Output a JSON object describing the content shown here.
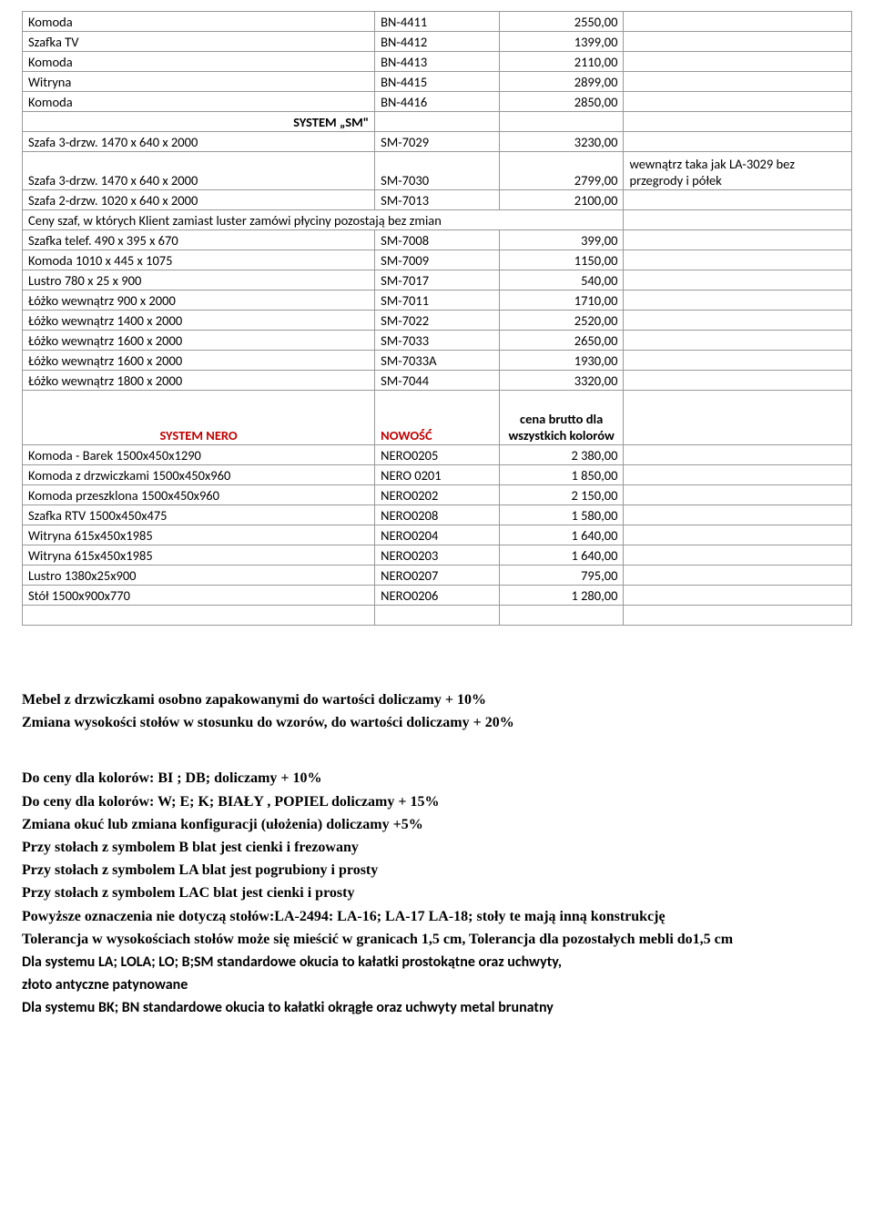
{
  "table": {
    "rows": [
      {
        "c1": "Komoda",
        "c2": "BN-4411",
        "c3": "2550,00",
        "c4": ""
      },
      {
        "c1": "Szafka TV",
        "c2": "BN-4412",
        "c3": "1399,00",
        "c4": ""
      },
      {
        "c1": "Komoda",
        "c2": "BN-4413",
        "c3": "2110,00",
        "c4": ""
      },
      {
        "c1": "Witryna",
        "c2": "BN-4415",
        "c3": "2899,00",
        "c4": ""
      },
      {
        "c1": "Komoda",
        "c2": "BN-4416",
        "c3": "2850,00",
        "c4": ""
      },
      {
        "c1": "SYSTEM „SM\"",
        "c2": "",
        "c3": "",
        "c4": "",
        "header": true,
        "rightAlign": true
      },
      {
        "c1": "Szafa 3-drzw. 1470 x 640 x 2000",
        "c2": "SM-7029",
        "c3": "3230,00",
        "c4": ""
      },
      {
        "c1": "Szafa 3-drzw. 1470 x 640 x 2000",
        "c2": "SM-7030",
        "c3": "2799,00",
        "c4": "wewnątrz taka jak LA-3029 bez przegrody i półek",
        "tallNote": true
      },
      {
        "c1": "Szafa 2-drzw. 1020 x 640 x 2000",
        "c2": "SM-7013",
        "c3": "2100,00",
        "c4": ""
      },
      {
        "c1": "Ceny szaf, w których Klient zamiast luster zamówi płyciny pozostają bez zmian",
        "span3": true
      },
      {
        "c1": "Szafka telef. 490 x 395 x 670",
        "c2": "SM-7008",
        "c3": "399,00",
        "c4": ""
      },
      {
        "c1": "Komoda 1010 x 445 x 1075",
        "c2": "SM-7009",
        "c3": "1150,00",
        "c4": ""
      },
      {
        "c1": "Lustro 780 x 25 x 900",
        "c2": "SM-7017",
        "c3": "540,00",
        "c4": ""
      },
      {
        "c1": "Łóżko wewnątrz  900 x 2000",
        "c2": "SM-7011",
        "c3": "1710,00",
        "c4": ""
      },
      {
        "c1": "Łóżko wewnątrz 1400 x 2000",
        "c2": "SM-7022",
        "c3": "2520,00",
        "c4": ""
      },
      {
        "c1": "Łóżko wewnątrz 1600 x 2000",
        "c2": "SM-7033",
        "c3": "2650,00",
        "c4": ""
      },
      {
        "c1": "Łóżko wewnątrz 1600 x 2000",
        "c2": "SM-7033A",
        "c3": "1930,00",
        "c4": ""
      },
      {
        "c1": "Łóżko wewnątrz 1800 x 2000",
        "c2": "SM-7044",
        "c3": "3320,00",
        "c4": ""
      },
      {
        "c1": "SYSTEM NERO",
        "c2": "NOWOŚĆ",
        "c3": "cena brutto dla wszystkich kolorów",
        "c4": "",
        "neroHeader": true
      },
      {
        "c1": "Komoda - Barek 1500x450x1290",
        "c2": "NERO0205",
        "c3": "2 380,00",
        "c4": ""
      },
      {
        "c1": "Komoda z drzwiczkami 1500x450x960",
        "c2": "NERO 0201",
        "c3": "1 850,00",
        "c4": ""
      },
      {
        "c1": "Komoda przeszklona 1500x450x960",
        "c2": "NERO0202",
        "c3": "2 150,00",
        "c4": ""
      },
      {
        "c1": "Szafka RTV 1500x450x475",
        "c2": "NERO0208",
        "c3": "1 580,00",
        "c4": ""
      },
      {
        "c1": "Witryna 615x450x1985",
        "c2": "NERO0204",
        "c3": "1 640,00",
        "c4": ""
      },
      {
        "c1": "Witryna 615x450x1985",
        "c2": "NERO0203",
        "c3": "1 640,00",
        "c4": ""
      },
      {
        "c1": "Lustro 1380x25x900",
        "c2": "NERO0207",
        "c3": "795,00",
        "c4": ""
      },
      {
        "c1": "Stół 1500x900x770",
        "c2": "NERO0206",
        "c3": "1 280,00",
        "c4": ""
      },
      {
        "c1": "",
        "c2": "",
        "c3": "",
        "c4": ""
      }
    ]
  },
  "notes": {
    "n1": "Mebel z drzwiczkami osobno zapakowanymi do wartości  doliczamy   + 10%",
    "n2": "Zmiana wysokości stołów w stosunku do wzorów, do wartości  doliczamy  + 20%",
    "n3_a": "Do ceny  dla kolorów:  BI ; DB;",
    "n3_b": "    doliczamy    + 10%",
    "n4_a": "Do ceny  dla kolorów:  W; E; K; BIAŁY , POPIEL",
    "n4_b": "   doliczamy   + 15%",
    "n5": "Zmiana okuć lub zmiana konfiguracji (ułożenia) doliczamy   +5%",
    "n6_a": "Przy stołach z symbolem B",
    "n6_b": "         blat jest cienki i frezowany",
    "n7_a": "Przy stołach z symbolem LA",
    "n7_b": "      blat jest pogrubiony i prosty",
    "n8_a": "Przy stołach z symbolem LAC",
    "n8_b": "    blat jest cienki i prosty",
    "n9": "Powyższe oznaczenia nie dotyczą stołów:LA-2494: LA-16; LA-17 LA-18; stoły te mają inną konstrukcję",
    "n10": "Tolerancja w wysokościach stołów może się mieścić w granicach 1,5 cm, Tolerancja dla pozostałych mebli  do1,5 cm",
    "n11": "Dla systemu LA; LOLA; LO; B;SM standardowe okucia to kałatki prostokątne oraz uchwyty,",
    "n12": "złoto antyczne patynowane",
    "n13": "Dla systemu BK; BN standardowe okucia to kałatki okrągłe oraz uchwyty metal brunatny"
  }
}
